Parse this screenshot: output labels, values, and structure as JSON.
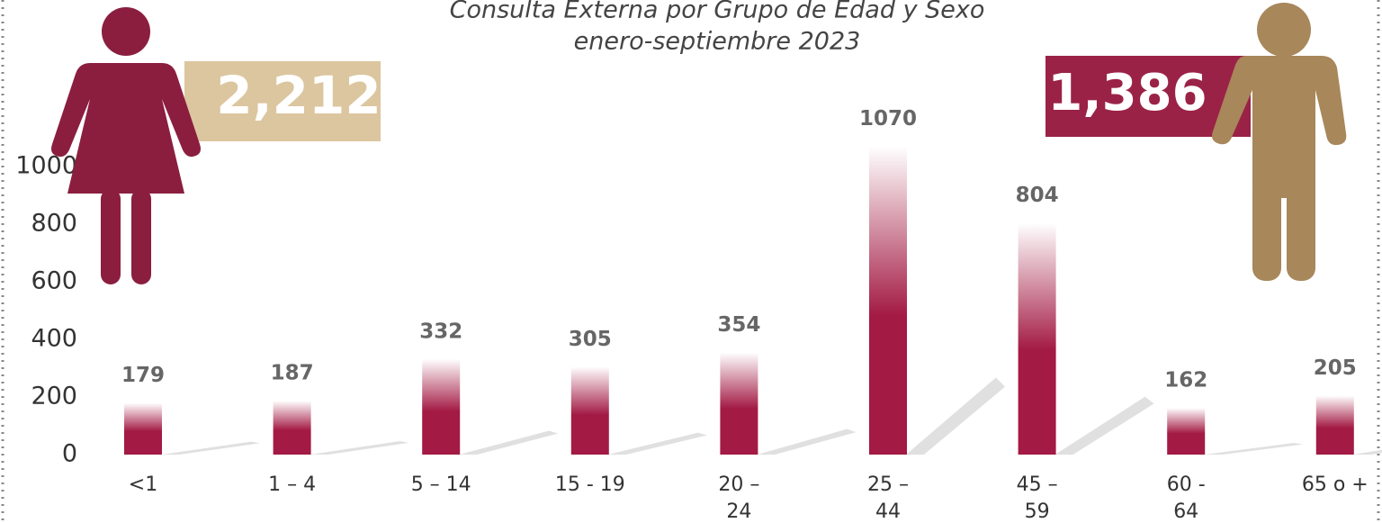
{
  "chart_data": {
    "type": "bar",
    "title": "Consulta Externa por Grupo de Edad y Sexo",
    "subtitle": "enero-septiembre 2023",
    "categories": [
      "<1",
      "1 – 4",
      "5 – 14",
      "15 - 19",
      "20 – 24",
      "25 – 44",
      "45 – 59",
      "60 - 64",
      "65 o +"
    ],
    "values": [
      179,
      187,
      332,
      305,
      354,
      1070,
      804,
      162,
      205
    ],
    "color": "#a31a44",
    "ylim": [
      0,
      1100
    ],
    "yticks": [
      0,
      200,
      400,
      600,
      800,
      1000
    ],
    "grid": false,
    "annotations": [
      "2,212",
      "1,386"
    ]
  }
}
